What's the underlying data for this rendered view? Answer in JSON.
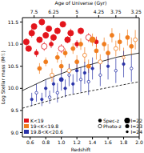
{
  "chart_data": {
    "type": "scatter",
    "x_label": "Redshift",
    "y_label": "Log Stellar mass (M☉)",
    "x2_label": "Age of Universe (Gyr)",
    "xlim": [
      0.5,
      2.0
    ],
    "xticks": [
      {
        "value": 0.6,
        "label": "0.6"
      },
      {
        "value": 0.8,
        "label": "0.8"
      },
      {
        "value": 1.0,
        "label": "1.0"
      },
      {
        "value": 1.2,
        "label": "1.2"
      },
      {
        "value": 1.4,
        "label": "1.4"
      },
      {
        "value": 1.6,
        "label": "1.6"
      },
      {
        "value": 1.8,
        "label": "1.8"
      },
      {
        "value": 2.0,
        "label": "2.0"
      }
    ],
    "age_ticks": [
      {
        "redshift": 0.65,
        "label": "7.5"
      },
      {
        "redshift": 0.9,
        "label": "6.25"
      },
      {
        "redshift": 1.2,
        "label": "5"
      },
      {
        "redshift": 1.48,
        "label": "4.25"
      },
      {
        "redshift": 1.7,
        "label": "3.75"
      },
      {
        "redshift": 1.96,
        "label": "3.25"
      }
    ],
    "ylim": [
      8.9,
      11.6
    ],
    "yticks": [
      {
        "value": 9.0,
        "label": "9.0"
      },
      {
        "value": 9.5,
        "label": "9.5"
      },
      {
        "value": 10.0,
        "label": "10.0"
      },
      {
        "value": 10.5,
        "label": "10.5"
      },
      {
        "value": 11.0,
        "label": "11.0"
      },
      {
        "value": 11.5,
        "label": "11.5"
      }
    ],
    "legend": "lower left",
    "series": [
      {
        "name": "K<19",
        "color": "#e3151c",
        "x": [
          0.55,
          0.58,
          0.62,
          0.65,
          0.68,
          0.72,
          0.75,
          0.78,
          0.8,
          0.84,
          0.87,
          0.9,
          0.95,
          1.0,
          1.02,
          1.08,
          1.12,
          1.2,
          1.25,
          1.35,
          1.45
        ],
        "values": [
          11.05,
          10.9,
          11.25,
          11.4,
          10.8,
          11.1,
          11.5,
          10.95,
          11.2,
          11.35,
          11.0,
          11.15,
          11.3,
          10.9,
          11.45,
          11.1,
          11.25,
          11.0,
          11.3,
          11.15,
          11.05
        ],
        "errors": [
          0.08,
          0.06,
          0.1,
          0.07,
          0.09,
          0.06,
          0.08,
          0.1,
          0.07,
          0.06,
          0.09,
          0.08,
          0.07,
          0.1,
          0.06,
          0.08,
          0.1,
          0.09,
          0.07,
          0.1,
          0.12
        ],
        "I_mag": [
          22,
          22,
          22,
          22,
          23,
          22,
          22,
          22,
          22,
          22,
          23,
          22,
          22,
          22,
          22,
          22,
          22,
          23,
          22,
          22,
          23
        ],
        "photo_z": [
          false,
          false,
          false,
          false,
          false,
          false,
          false,
          true,
          false,
          false,
          false,
          false,
          false,
          true,
          false,
          false,
          false,
          false,
          false,
          true,
          false
        ]
      },
      {
        "name": "19<K<19.8",
        "color": "#f07d1e",
        "x": [
          0.72,
          0.8,
          0.88,
          0.95,
          1.0,
          1.05,
          1.1,
          1.15,
          1.2,
          1.25,
          1.3,
          1.35,
          1.4,
          1.45,
          1.5,
          1.55,
          1.6,
          1.65,
          1.7,
          1.75,
          1.8,
          1.85,
          1.9,
          1.95
        ],
        "values": [
          10.45,
          10.6,
          10.3,
          10.7,
          10.5,
          10.8,
          10.4,
          10.9,
          10.6,
          11.0,
          10.75,
          10.5,
          11.1,
          10.85,
          10.6,
          11.0,
          10.8,
          11.2,
          10.9,
          11.05,
          10.7,
          11.15,
          10.95,
          11.1
        ],
        "errors": [
          0.12,
          0.1,
          0.15,
          0.12,
          0.14,
          0.1,
          0.16,
          0.12,
          0.15,
          0.13,
          0.18,
          0.15,
          0.14,
          0.2,
          0.17,
          0.15,
          0.2,
          0.16,
          0.18,
          0.2,
          0.22,
          0.18,
          0.2,
          0.22
        ],
        "I_mag": [
          23,
          23,
          23,
          23,
          23,
          23,
          23,
          23,
          23,
          23,
          23,
          23,
          22,
          23,
          23,
          23,
          23,
          23,
          23,
          23,
          24,
          23,
          23,
          23
        ],
        "photo_z": [
          false,
          false,
          true,
          false,
          false,
          false,
          true,
          false,
          false,
          false,
          true,
          false,
          false,
          false,
          true,
          false,
          false,
          false,
          true,
          false,
          true,
          false,
          false,
          true
        ]
      },
      {
        "name": "19.8<K<20.6",
        "color": "#2a33a8",
        "x": [
          0.62,
          0.68,
          0.75,
          0.8,
          0.85,
          0.9,
          0.95,
          1.0,
          1.05,
          1.1,
          1.15,
          1.2,
          1.25,
          1.3,
          1.35,
          1.4,
          1.5,
          1.6,
          1.7,
          1.8,
          1.9
        ],
        "values": [
          9.75,
          9.9,
          9.75,
          10.0,
          9.8,
          10.1,
          9.9,
          10.2,
          10.0,
          10.3,
          10.1,
          10.4,
          10.2,
          10.35,
          10.15,
          10.45,
          10.3,
          10.5,
          10.4,
          10.55,
          10.45
        ],
        "errors": [
          0.15,
          0.2,
          0.15,
          0.2,
          0.15,
          0.2,
          0.22,
          0.25,
          0.2,
          0.25,
          0.22,
          0.25,
          0.28,
          0.25,
          0.3,
          0.25,
          0.25,
          0.3,
          0.28,
          0.3,
          0.3
        ],
        "I_mag": [
          24,
          24,
          24,
          24,
          24,
          24,
          24,
          23,
          24,
          24,
          24,
          24,
          24,
          24,
          24,
          24,
          24,
          24,
          24,
          24,
          24
        ],
        "photo_z": [
          false,
          true,
          false,
          false,
          true,
          false,
          true,
          false,
          false,
          true,
          false,
          false,
          true,
          false,
          true,
          false,
          true,
          false,
          true,
          false,
          true
        ]
      }
    ],
    "lines": [
      {
        "x": [
          0.5,
          0.8,
          1.1,
          1.4,
          1.7,
          2.0
        ],
        "values": [
          9.95,
          10.2,
          10.4,
          10.55,
          10.7,
          10.8
        ],
        "line_style": "solid"
      },
      {
        "x": [
          0.5,
          0.8,
          1.1,
          1.4,
          1.7,
          2.0
        ],
        "values": [
          9.55,
          9.7,
          9.85,
          9.95,
          10.05,
          10.15
        ],
        "line_style": "dashed"
      }
    ],
    "marker_legend": {
      "filled": "Spec-z",
      "open": "Photo-z",
      "sizes": [
        {
          "value": 22,
          "label": "I=22"
        },
        {
          "value": 23,
          "label": "I=23"
        },
        {
          "value": 24,
          "label": "I=24"
        }
      ]
    }
  }
}
